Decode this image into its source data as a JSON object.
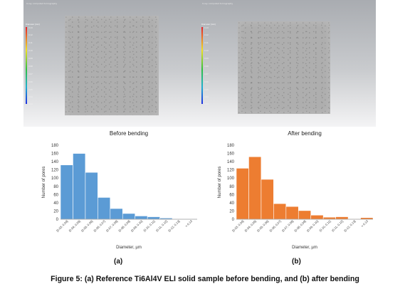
{
  "panels": [
    {
      "header": "X-ray computed tomography",
      "scale_title": "Diameter [mm]",
      "scale_ticks": [
        "0.13",
        "0.12",
        "0.11",
        "0.10",
        "0.09",
        "0.08",
        "0.07",
        "0.06",
        "0.05",
        "0.04",
        "0.03"
      ]
    },
    {
      "header": "X-ray computed tomography",
      "scale_title": "Diameter [mm]",
      "scale_ticks": [
        "0.13",
        "0.12",
        "0.11",
        "0.10",
        "0.09",
        "0.08",
        "0.07",
        "0.06",
        "0.05",
        "0.04",
        "0.03"
      ]
    }
  ],
  "chart_data": [
    {
      "type": "bar",
      "title": "Before bending",
      "xlabel": "Diameter, µm",
      "ylabel": "Number of pores",
      "ylim": [
        0,
        180
      ],
      "yticks": [
        0,
        20,
        40,
        60,
        80,
        100,
        120,
        140,
        160,
        180
      ],
      "categories": [
        "[0.03, 0.04]",
        "(0.04, 0.05]",
        "(0.05, 0.06]",
        "(0.06, 0.07]",
        "(0.07, 0.08]",
        "(0.08, 0.09]",
        "(0.09, 0.10]",
        "(0.10, 0.11]",
        "(0.11, 0.12]",
        "(0.12, 0.13]",
        "> 0.13"
      ],
      "values": [
        132,
        160,
        114,
        53,
        26,
        14,
        8,
        6,
        3,
        1,
        1
      ],
      "color": "#5b9bd5",
      "grid": false
    },
    {
      "type": "bar",
      "title": "After bending",
      "xlabel": "Diameter, µm",
      "ylabel": "Number of pores",
      "ylim": [
        0,
        180
      ],
      "yticks": [
        0,
        20,
        40,
        60,
        80,
        100,
        120,
        140,
        160,
        180
      ],
      "categories": [
        "[0.03, 0.04]",
        "(0.04, 0.05]",
        "(0.05, 0.06]",
        "(0.06, 0.07]",
        "(0.07, 0.08]",
        "(0.08, 0.09]",
        "(0.09, 0.10]",
        "(0.10, 0.11]",
        "(0.11, 0.12]",
        "(0.12, 0.13]",
        "> 0.13"
      ],
      "values": [
        124,
        152,
        97,
        38,
        31,
        21,
        10,
        5,
        6,
        1,
        4
      ],
      "color": "#ed7d31",
      "grid": false
    }
  ],
  "labels": [
    "(a)",
    "(b)"
  ],
  "caption": "Figure 5: (a) Reference Ti6Al4V ELI solid sample before bending, and (b) after bending"
}
